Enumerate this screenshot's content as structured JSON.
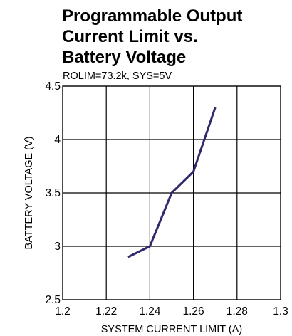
{
  "chart_data": {
    "type": "line",
    "title": "Programmable Output\nCurrent Limit vs.\nBattery Voltage",
    "subtitle": "ROLIM=73.2k, SYS=5V",
    "xlabel": "SYSTEM CURRENT LIMIT (A)",
    "ylabel": "BATTERY VOLTAGE (V)",
    "xlim": [
      1.2,
      1.3
    ],
    "ylim": [
      2.5,
      4.5
    ],
    "xticks": [
      1.2,
      1.22,
      1.24,
      1.26,
      1.28,
      1.3
    ],
    "xtick_labels": [
      "1.2",
      "1.22",
      "1.24",
      "1.26",
      "1.28",
      "1.3"
    ],
    "yticks": [
      2.5,
      3,
      3.5,
      4,
      4.5
    ],
    "ytick_labels": [
      "2.5",
      "3",
      "3.5",
      "4",
      "4.5"
    ],
    "grid": true,
    "series": [
      {
        "color": "#2e2a6b",
        "x": [
          1.23,
          1.24,
          1.25,
          1.26,
          1.27
        ],
        "y": [
          2.9,
          3.0,
          3.5,
          3.7,
          4.3
        ]
      }
    ]
  }
}
